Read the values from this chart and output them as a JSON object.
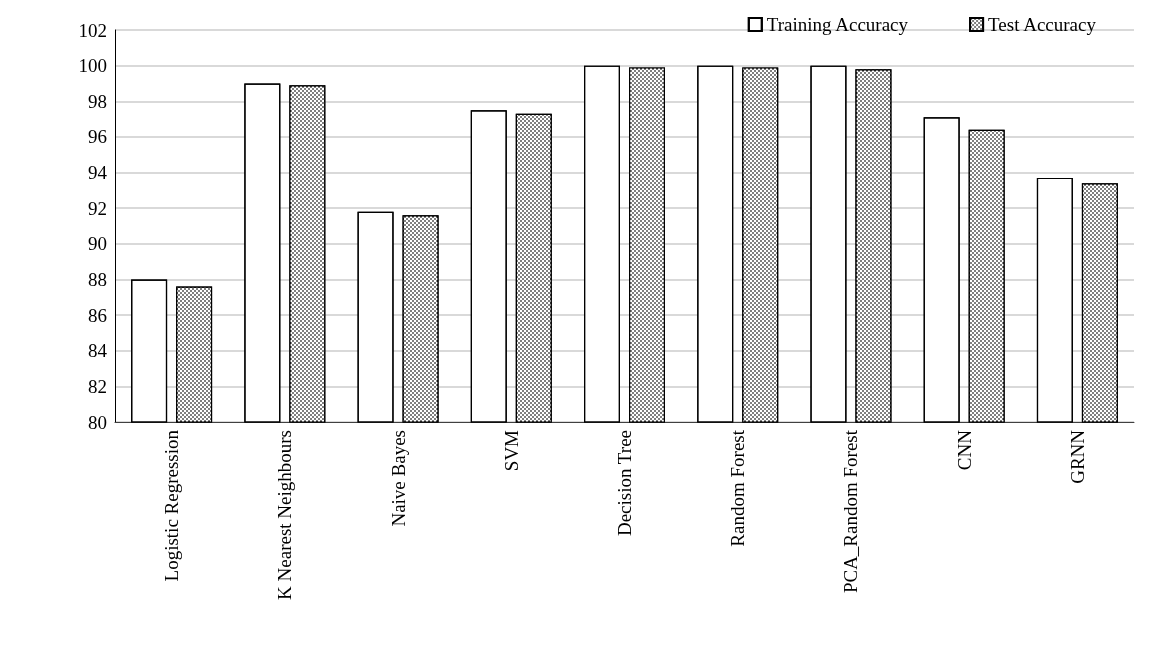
{
  "chart_data": {
    "type": "bar",
    "categories": [
      "Logistic Regression",
      "K Nearest Neighbours",
      "Naive Bayes",
      "SVM",
      "Decision Tree",
      "Random Forest",
      "PCA_Random Forest",
      "CNN",
      "GRNN"
    ],
    "series": [
      {
        "name": "Training Accuracy",
        "color": "#ffffff",
        "values": [
          88.0,
          99.0,
          91.8,
          97.5,
          100,
          100,
          100,
          97.1,
          93.7
        ]
      },
      {
        "name": "Test Accuracy",
        "color": "#7f7f7f",
        "values": [
          87.6,
          98.9,
          91.6,
          97.3,
          99.9,
          99.9,
          99.8,
          96.4,
          93.4
        ]
      }
    ],
    "ylim": [
      80,
      102
    ],
    "yticks": [
      80,
      82,
      84,
      86,
      88,
      90,
      92,
      94,
      96,
      98,
      100,
      102
    ],
    "grid": "y",
    "legend": "top right"
  }
}
